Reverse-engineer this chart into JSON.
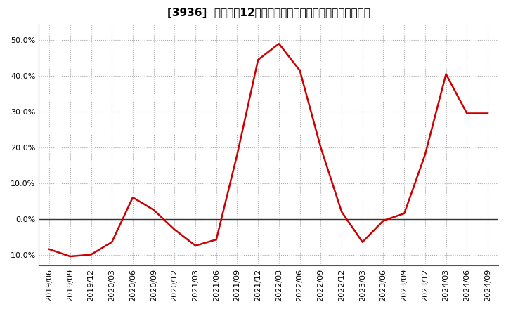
{
  "title": "[3936]  売上高の12か月移動合計の対前年同期増減率の推移",
  "line_color": "#cc0000",
  "background_color": "#ffffff",
  "plot_bg_color": "#ffffff",
  "grid_color": "#aaaaaa",
  "zero_line_color": "#333333",
  "dates": [
    "2019/06",
    "2019/09",
    "2019/12",
    "2020/03",
    "2020/06",
    "2020/09",
    "2020/12",
    "2021/03",
    "2021/06",
    "2021/09",
    "2021/12",
    "2022/03",
    "2022/06",
    "2022/09",
    "2022/12",
    "2023/03",
    "2023/06",
    "2023/09",
    "2023/12",
    "2024/03",
    "2024/06",
    "2024/09"
  ],
  "values": [
    -0.085,
    -0.105,
    -0.1,
    -0.065,
    0.06,
    0.025,
    -0.03,
    -0.075,
    -0.058,
    0.18,
    0.445,
    0.49,
    0.415,
    0.2,
    0.02,
    -0.065,
    -0.005,
    0.015,
    0.18,
    0.405,
    0.295,
    0.295
  ],
  "ylim": [
    -0.13,
    0.545
  ],
  "yticks": [
    -0.1,
    0.0,
    0.1,
    0.2,
    0.3,
    0.4,
    0.5
  ],
  "title_fontsize": 11,
  "tick_fontsize": 8,
  "line_width": 1.8
}
